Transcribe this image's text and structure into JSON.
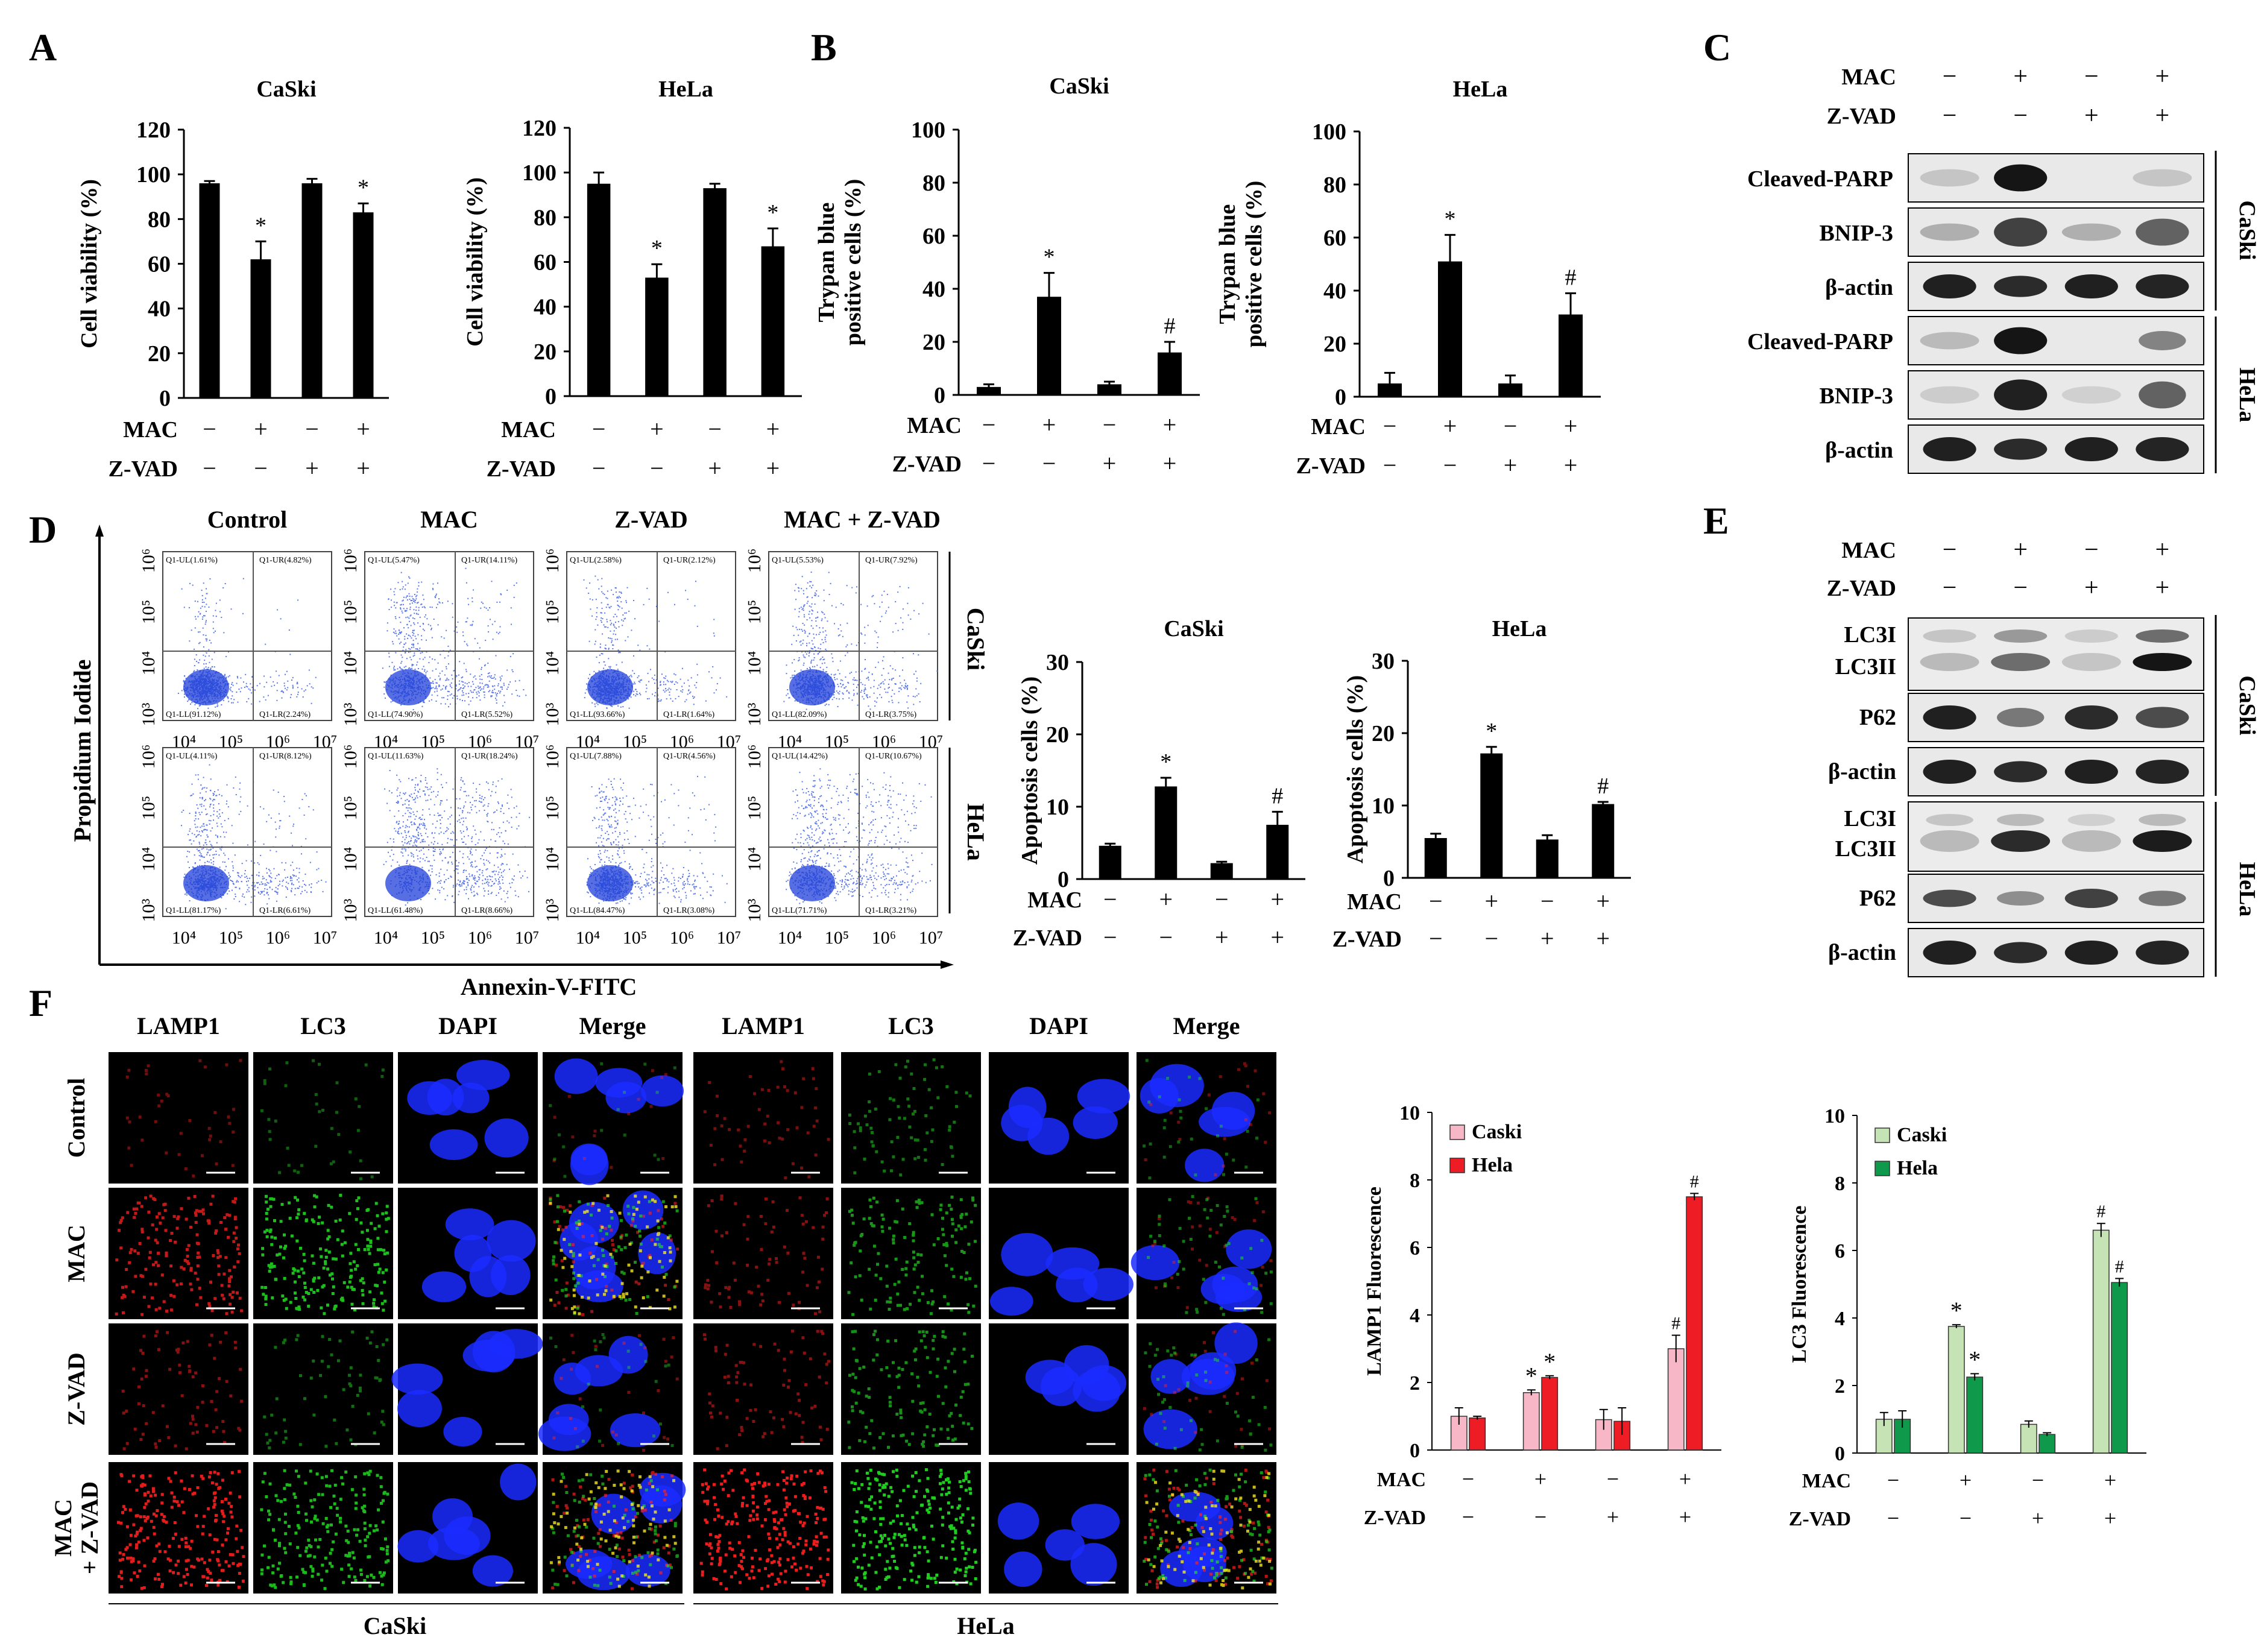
{
  "panels": {
    "A": {
      "letter": "A",
      "charts": [
        {
          "title": "CaSki",
          "ylabel": "Cell viability (%)",
          "ylim": [
            0,
            120
          ],
          "ticks": [
            0,
            20,
            40,
            60,
            80,
            100,
            120
          ],
          "values": [
            96,
            62,
            96,
            83
          ],
          "errors": [
            1,
            8,
            2,
            4
          ],
          "marks": [
            "",
            "*",
            "",
            "*"
          ]
        },
        {
          "title": "HeLa",
          "ylabel": "Cell viability (%)",
          "ylim": [
            0,
            120
          ],
          "ticks": [
            0,
            20,
            40,
            60,
            80,
            100,
            120
          ],
          "values": [
            95,
            53,
            93,
            67
          ],
          "errors": [
            5,
            6,
            2,
            8
          ],
          "marks": [
            "",
            "*",
            "",
            "*"
          ]
        }
      ]
    },
    "B": {
      "letter": "B",
      "charts": [
        {
          "title": "CaSki",
          "ylabel": "Trypan blue positive cells (%)",
          "ylabel_lines": [
            "Trypan blue",
            "positive cells (%)"
          ],
          "ylim": [
            0,
            100
          ],
          "ticks": [
            0,
            20,
            40,
            60,
            80,
            100
          ],
          "values": [
            3,
            37,
            4,
            16
          ],
          "errors": [
            1,
            9,
            1,
            4
          ],
          "marks": [
            "",
            "*",
            "",
            "#"
          ]
        },
        {
          "title": "HeLa",
          "ylabel": "Trypan blue positive cells (%)",
          "ylabel_lines": [
            "Trypan blue",
            "positive cells (%)"
          ],
          "ylim": [
            0,
            100
          ],
          "ticks": [
            0,
            20,
            40,
            60,
            80,
            100
          ],
          "values": [
            5,
            51,
            5,
            31
          ],
          "errors": [
            4,
            10,
            3,
            8
          ],
          "marks": [
            "",
            "*",
            "",
            "#"
          ]
        }
      ]
    },
    "C": {
      "letter": "C",
      "treat": {
        "mac": [
          "−",
          "+",
          "−",
          "+"
        ],
        "zvad": [
          "−",
          "−",
          "+",
          "+"
        ]
      },
      "rows": [
        "Cleaved-PARP",
        "BNIP-3",
        "β-actin",
        "Cleaved-PARP",
        "BNIP-3",
        "β-actin"
      ],
      "groups": [
        "CaSki",
        "HeLa"
      ]
    },
    "D": {
      "letter": "D",
      "columns": [
        "Control",
        "MAC",
        "Z-VAD",
        "MAC + Z-VAD"
      ],
      "rows": [
        "CaSki",
        "HeLa"
      ],
      "ylabel": "Propidium Iodide",
      "xlabel": "Annexin-V-FITC",
      "yticks": [
        "10³",
        "10⁴",
        "10⁵",
        "10⁶"
      ],
      "xticks": [
        "10⁴",
        "10⁵",
        "10⁶",
        "10⁷"
      ],
      "quadrants": [
        [
          [
            "Q1-UL(1.61%)",
            "Q1-UR(4.82%)",
            "Q1-LL(91.12%)",
            "Q1-LR(2.24%)"
          ],
          [
            "Q1-UL(5.47%)",
            "Q1-UR(14.11%)",
            "Q1-LL(74.90%)",
            "Q1-LR(5.52%)"
          ],
          [
            "Q1-UL(2.58%)",
            "Q1-UR(2.12%)",
            "Q1-LL(93.66%)",
            "Q1-LR(1.64%)"
          ],
          [
            "Q1-UL(5.53%)",
            "Q1-UR(7.92%)",
            "Q1-LL(82.09%)",
            "Q1-LR(3.75%)"
          ]
        ],
        [
          [
            "Q1-UL(4.11%)",
            "Q1-UR(8.12%)",
            "Q1-LL(81.17%)",
            "Q1-LR(6.61%)"
          ],
          [
            "Q1-UL(11.63%)",
            "Q1-UR(18.24%)",
            "Q1-LL(61.48%)",
            "Q1-LR(8.66%)"
          ],
          [
            "Q1-UL(7.88%)",
            "Q1-UR(4.56%)",
            "Q1-LL(84.47%)",
            "Q1-LR(3.08%)"
          ],
          [
            "Q1-UL(14.42%)",
            "Q1-UR(10.67%)",
            "Q1-LL(71.71%)",
            "Q1-LR(3.21%)"
          ]
        ]
      ],
      "charts": [
        {
          "title": "CaSki",
          "ylabel": "Apoptosis cells (%)",
          "ylim": [
            0,
            30
          ],
          "ticks": [
            0,
            10,
            20,
            30
          ],
          "values": [
            4.6,
            12.8,
            2.2,
            7.5
          ],
          "errors": [
            0.3,
            1.2,
            0.2,
            1.8
          ],
          "marks": [
            "",
            "*",
            "",
            "#"
          ]
        },
        {
          "title": "HeLa",
          "ylabel": "Apoptosis cells (%)",
          "ylim": [
            0,
            30
          ],
          "ticks": [
            0,
            10,
            20,
            30
          ],
          "values": [
            5.5,
            17.2,
            5.3,
            10.2
          ],
          "errors": [
            0.6,
            0.9,
            0.6,
            0.3
          ],
          "marks": [
            "",
            "*",
            "",
            "#"
          ]
        }
      ]
    },
    "E": {
      "letter": "E",
      "treat": {
        "mac": [
          "−",
          "+",
          "−",
          "+"
        ],
        "zvad": [
          "−",
          "−",
          "+",
          "+"
        ]
      },
      "groups": [
        "CaSki",
        "HeLa"
      ],
      "labels": {
        "lc3i": "LC3I",
        "lc3ii": "LC3II",
        "p62": "P62",
        "actin": "β-actin"
      }
    },
    "F": {
      "letter": "F",
      "columns": [
        "LAMP1",
        "LC3",
        "DAPI",
        "Merge",
        "LAMP1",
        "LC3",
        "DAPI",
        "Merge"
      ],
      "rows": [
        "Control",
        "MAC",
        "Z-VAD",
        "MAC + Z-VAD"
      ],
      "row_label_lines": [
        [
          "Control"
        ],
        [
          "MAC"
        ],
        [
          "Z-VAD"
        ],
        [
          "MAC",
          "+ Z-VAD"
        ]
      ],
      "groups": [
        "CaSki",
        "HeLa"
      ],
      "colors": {
        "lamp1": "#ff2020",
        "lc3": "#22dd22",
        "dapi": "#1a2bff"
      }
    }
  },
  "treatment_labels": {
    "mac": "MAC",
    "zvad": "Z-VAD",
    "mac_signs": [
      "−",
      "+",
      "−",
      "+"
    ],
    "zvad_signs": [
      "−",
      "−",
      "+",
      "+"
    ]
  },
  "chart_data": [
    {
      "type": "bar",
      "panel": "A",
      "title": "CaSki",
      "categories": [
        "MAC−/Z-VAD−",
        "MAC+/Z-VAD−",
        "MAC−/Z-VAD+",
        "MAC+/Z-VAD+"
      ],
      "values": [
        96,
        62,
        96,
        83
      ],
      "ylabel": "Cell viability (%)",
      "ylim": [
        0,
        120
      ]
    },
    {
      "type": "bar",
      "panel": "A",
      "title": "HeLa",
      "categories": [
        "MAC−/Z-VAD−",
        "MAC+/Z-VAD−",
        "MAC−/Z-VAD+",
        "MAC+/Z-VAD+"
      ],
      "values": [
        95,
        53,
        93,
        67
      ],
      "ylabel": "Cell viability (%)",
      "ylim": [
        0,
        120
      ]
    },
    {
      "type": "bar",
      "panel": "B",
      "title": "CaSki",
      "categories": [
        "MAC−/Z-VAD−",
        "MAC+/Z-VAD−",
        "MAC−/Z-VAD+",
        "MAC+/Z-VAD+"
      ],
      "values": [
        3,
        37,
        4,
        16
      ],
      "ylabel": "Trypan blue positive cells (%)",
      "ylim": [
        0,
        100
      ]
    },
    {
      "type": "bar",
      "panel": "B",
      "title": "HeLa",
      "categories": [
        "MAC−/Z-VAD−",
        "MAC+/Z-VAD−",
        "MAC−/Z-VAD+",
        "MAC+/Z-VAD+"
      ],
      "values": [
        5,
        51,
        5,
        31
      ],
      "ylabel": "Trypan blue positive cells (%)",
      "ylim": [
        0,
        100
      ]
    },
    {
      "type": "bar",
      "panel": "D",
      "title": "CaSki",
      "categories": [
        "MAC−/Z-VAD−",
        "MAC+/Z-VAD−",
        "MAC−/Z-VAD+",
        "MAC+/Z-VAD+"
      ],
      "values": [
        4.6,
        12.8,
        2.2,
        7.5
      ],
      "ylabel": "Apoptosis cells (%)",
      "ylim": [
        0,
        30
      ]
    },
    {
      "type": "bar",
      "panel": "D",
      "title": "HeLa",
      "categories": [
        "MAC−/Z-VAD−",
        "MAC+/Z-VAD−",
        "MAC−/Z-VAD+",
        "MAC+/Z-VAD+"
      ],
      "values": [
        5.5,
        17.2,
        5.3,
        10.2
      ],
      "ylabel": "Apoptosis cells (%)",
      "ylim": [
        0,
        30
      ]
    },
    {
      "type": "bar",
      "panel": "F",
      "ylabel": "LAMP1 Fluorescence",
      "ylim": [
        0,
        10
      ],
      "ticks": [
        0,
        2,
        4,
        6,
        8,
        10
      ],
      "categories": [
        "MAC−/Z-VAD−",
        "MAC+/Z-VAD−",
        "MAC−/Z-VAD+",
        "MAC+/Z-VAD+"
      ],
      "series": [
        {
          "name": "Caski",
          "color": "#f7b7c7",
          "values": [
            1.0,
            1.7,
            0.9,
            3.0
          ],
          "errors": [
            0.25,
            0.08,
            0.3,
            0.4
          ],
          "marks": [
            "",
            "*",
            "",
            "#"
          ]
        },
        {
          "name": "Hela",
          "color": "#ee1c25",
          "values": [
            0.95,
            2.15,
            0.85,
            7.5
          ],
          "errors": [
            0.05,
            0.05,
            0.4,
            0.1
          ],
          "marks": [
            "",
            "*",
            "",
            "#"
          ]
        }
      ]
    },
    {
      "type": "bar",
      "panel": "F",
      "ylabel": "LC3 Fluorescence",
      "ylim": [
        0,
        10
      ],
      "ticks": [
        0,
        2,
        4,
        6,
        8,
        10
      ],
      "categories": [
        "MAC−/Z-VAD−",
        "MAC+/Z-VAD−",
        "MAC−/Z-VAD+",
        "MAC+/Z-VAD+"
      ],
      "series": [
        {
          "name": "Caski",
          "color": "#c5e3b4",
          "values": [
            1.0,
            3.75,
            0.85,
            6.6
          ],
          "errors": [
            0.2,
            0.05,
            0.1,
            0.2
          ],
          "marks": [
            "",
            "*",
            "",
            "#"
          ]
        },
        {
          "name": "Hela",
          "color": "#0e9a4a",
          "values": [
            1.0,
            2.25,
            0.55,
            5.05
          ],
          "errors": [
            0.25,
            0.1,
            0.05,
            0.12
          ],
          "marks": [
            "",
            "*",
            "",
            "#"
          ]
        }
      ]
    }
  ]
}
